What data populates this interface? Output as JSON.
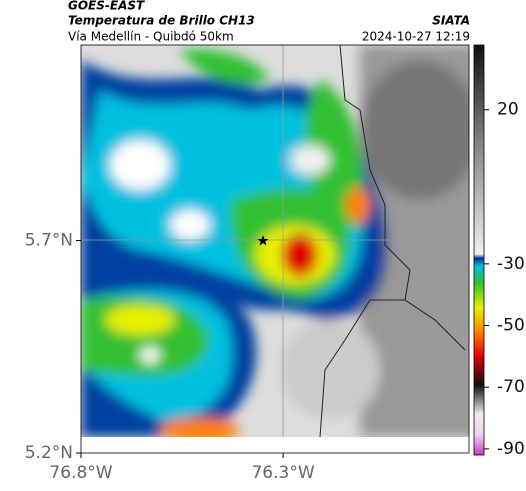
{
  "header": {
    "source": "GOES-EAST",
    "title": "Temperatura de Brillo CH13",
    "brand": "SIATA",
    "subtitle": "Vía Medellín - Quibdó 50km",
    "timestamp": "2024-10-27 12:19"
  },
  "map": {
    "xlim": [
      -76.8,
      -75.84
    ],
    "ylim": [
      5.2,
      6.16
    ],
    "xticks": [
      {
        "value": -76.8,
        "label": "76.8°W"
      },
      {
        "value": -76.3,
        "label": "76.3°W"
      }
    ],
    "yticks": [
      {
        "value": 5.7,
        "label": "5.7°N"
      },
      {
        "value": 5.2,
        "label": "5.2°N"
      }
    ]
  },
  "colorbar": {
    "lim": [
      -92,
      41
    ],
    "ticks": [
      20,
      -30,
      -50,
      -70,
      -90
    ]
  }
}
